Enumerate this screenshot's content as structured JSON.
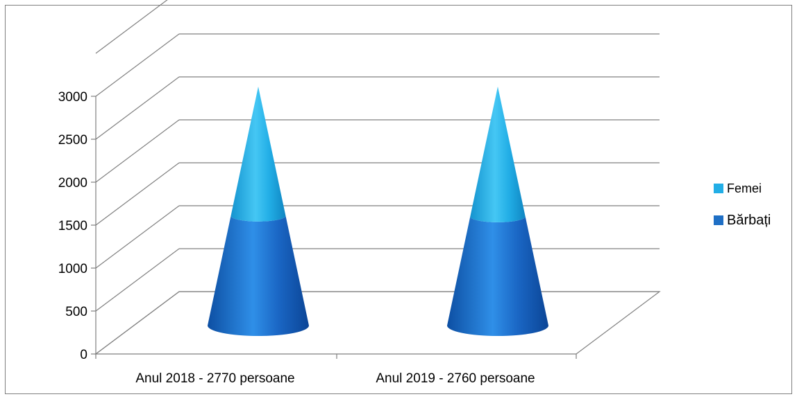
{
  "chart_data": {
    "type": "bar",
    "categories": [
      "Anul 2018 - 2770 persoane",
      "Anul 2019 - 2760 persoane"
    ],
    "series": [
      {
        "name": "Bărbați",
        "values": [
          1450,
          1440
        ],
        "color": "#1f6fc5"
      },
      {
        "name": "Femei",
        "values": [
          1320,
          1320
        ],
        "color": "#22aee6"
      }
    ],
    "yticks": [
      "0",
      "500",
      "1000",
      "1500",
      "2000",
      "2500",
      "3000"
    ],
    "ylim": [
      0,
      3500
    ],
    "grid": true,
    "legend": "right",
    "shape": "cone"
  }
}
